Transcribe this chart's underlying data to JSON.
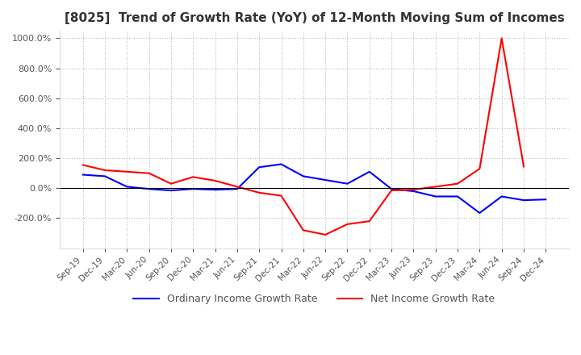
{
  "title": "[8025]  Trend of Growth Rate (YoY) of 12-Month Moving Sum of Incomes",
  "title_fontsize": 11,
  "ylim": [
    -400,
    1050
  ],
  "yticks": [
    -200.0,
    0.0,
    200.0,
    400.0,
    600.0,
    800.0,
    1000.0
  ],
  "legend_labels": [
    "Ordinary Income Growth Rate",
    "Net Income Growth Rate"
  ],
  "line_colors": [
    "blue",
    "red"
  ],
  "background_color": "#ffffff",
  "grid_color": "#bbbbbb",
  "x_labels": [
    "Sep-19",
    "Dec-19",
    "Mar-20",
    "Jun-20",
    "Sep-20",
    "Dec-20",
    "Mar-21",
    "Jun-21",
    "Sep-21",
    "Dec-21",
    "Mar-22",
    "Jun-22",
    "Sep-22",
    "Dec-22",
    "Mar-23",
    "Jun-23",
    "Sep-23",
    "Dec-23",
    "Mar-24",
    "Jun-24",
    "Sep-24",
    "Dec-24"
  ],
  "ordinary_income": [
    90,
    80,
    10,
    -5,
    -15,
    -5,
    -10,
    -5,
    140,
    160,
    80,
    55,
    30,
    110,
    -5,
    -20,
    -55,
    -55,
    -165,
    -55,
    -80,
    -75
  ],
  "net_income": [
    155,
    120,
    110,
    100,
    30,
    75,
    50,
    10,
    -30,
    -50,
    -280,
    -310,
    -240,
    -220,
    -15,
    -10,
    10,
    30,
    130,
    1000,
    145,
    null
  ]
}
